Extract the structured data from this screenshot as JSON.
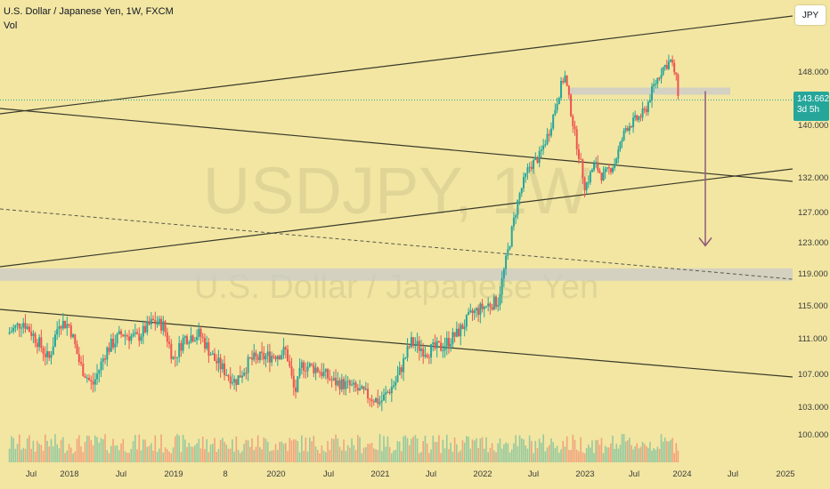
{
  "header": {
    "title": "U.S. Dollar / Japanese Yen, 1W, FXCM",
    "indicator": "Vol"
  },
  "currency_button": "JPY",
  "last_price_tag": {
    "price": "143.662",
    "countdown": "3d 5h",
    "color": "#26a69a"
  },
  "watermark": {
    "symbol": "USDJPY, 1W",
    "description": "U.S. Dollar / Japanese Yen"
  },
  "colors": {
    "background": "#f2e6a2",
    "up": "#26a69a",
    "down": "#ef5350",
    "arrow": "#8e5a79",
    "trendline": "#3a3a2a"
  },
  "chart_data": {
    "type": "candlestick",
    "symbol": "USDJPY",
    "interval": "1W",
    "x_ticks": [
      "Jul",
      "2018",
      "Jul",
      "2019",
      "8",
      "2020",
      "Jul",
      "2021",
      "Jul",
      "2022",
      "Jul",
      "2023",
      "Jul",
      "2024",
      "Jul",
      "2025"
    ],
    "y_ticks": [
      148.0,
      140.0,
      132.0,
      127.0,
      123.0,
      119.0,
      115.0,
      111.0,
      107.0,
      103.0,
      100.0
    ],
    "y_tick_labels": [
      "148.000",
      "140.000",
      "132.000",
      "127.000",
      "123.000",
      "119.000",
      "115.000",
      "111.000",
      "107.000",
      "103.000",
      "100.000"
    ],
    "last_price": 143.662,
    "period_start": "2017-05",
    "period_end": "2023-12",
    "approx_close_path": [
      [
        2017.4,
        111.5
      ],
      [
        2017.55,
        113.0
      ],
      [
        2017.7,
        110.5
      ],
      [
        2017.8,
        108.5
      ],
      [
        2017.9,
        113.0
      ],
      [
        2018.0,
        112.5
      ],
      [
        2018.1,
        108.0
      ],
      [
        2018.22,
        105.5
      ],
      [
        2018.35,
        109.5
      ],
      [
        2018.5,
        111.5
      ],
      [
        2018.65,
        111.0
      ],
      [
        2018.8,
        113.0
      ],
      [
        2018.9,
        112.5
      ],
      [
        2019.0,
        108.5
      ],
      [
        2019.1,
        111.0
      ],
      [
        2019.25,
        111.5
      ],
      [
        2019.4,
        108.5
      ],
      [
        2019.6,
        106.0
      ],
      [
        2019.75,
        108.5
      ],
      [
        2019.95,
        109.0
      ],
      [
        2020.1,
        109.5
      ],
      [
        2020.18,
        104.5
      ],
      [
        2020.25,
        108.0
      ],
      [
        2020.4,
        107.5
      ],
      [
        2020.55,
        106.0
      ],
      [
        2020.7,
        105.5
      ],
      [
        2020.85,
        104.5
      ],
      [
        2021.0,
        103.5
      ],
      [
        2021.15,
        106.0
      ],
      [
        2021.3,
        110.5
      ],
      [
        2021.45,
        109.5
      ],
      [
        2021.6,
        110.0
      ],
      [
        2021.75,
        111.5
      ],
      [
        2021.9,
        114.0
      ],
      [
        2022.05,
        115.0
      ],
      [
        2022.15,
        115.5
      ],
      [
        2022.25,
        122.0
      ],
      [
        2022.35,
        129.0
      ],
      [
        2022.45,
        133.5
      ],
      [
        2022.55,
        135.0
      ],
      [
        2022.65,
        139.0
      ],
      [
        2022.75,
        145.0
      ],
      [
        2022.8,
        147.5
      ],
      [
        2022.9,
        138.5
      ],
      [
        2023.0,
        130.5
      ],
      [
        2023.1,
        134.0
      ],
      [
        2023.18,
        132.0
      ],
      [
        2023.3,
        134.0
      ],
      [
        2023.42,
        139.5
      ],
      [
        2023.55,
        141.0
      ],
      [
        2023.62,
        142.0
      ],
      [
        2023.7,
        145.5
      ],
      [
        2023.8,
        148.5
      ],
      [
        2023.88,
        149.5
      ],
      [
        2023.93,
        147.5
      ],
      [
        2023.97,
        143.66
      ]
    ],
    "annotations": [
      {
        "type": "horizontal_zone",
        "price": 145.0
      },
      {
        "type": "horizontal_zone",
        "price": 118.8
      },
      {
        "type": "arrow_down",
        "from_price": 145.0,
        "to_price": 122.5
      }
    ]
  }
}
